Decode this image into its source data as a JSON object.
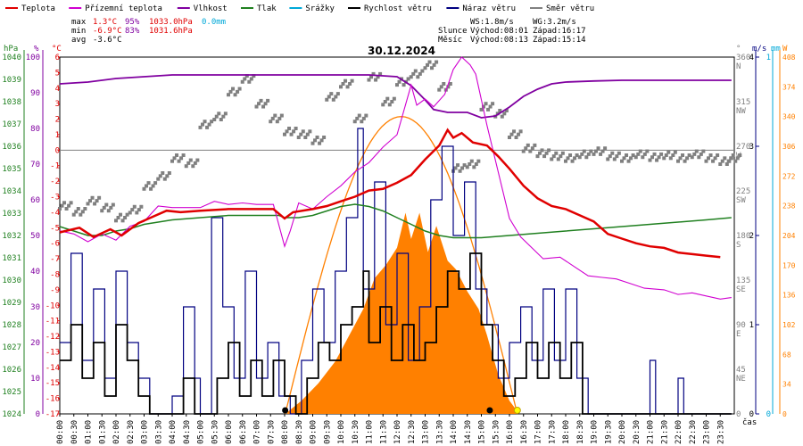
{
  "chart_data": {
    "type": "line",
    "title": "30.12.2024",
    "colors": {
      "temperature": "#e00000",
      "apparent": "#d000d0",
      "humidity": "#8000a0",
      "pressure": "#208020",
      "rain": "#00a8d8",
      "wind": "#000000",
      "gust": "#000080",
      "direction": "#808080",
      "solar": "#ff8000",
      "axis": "#000000"
    },
    "legend": [
      {
        "key": "temperature",
        "label": "Teplota"
      },
      {
        "key": "apparent",
        "label": "Přízemní teplota"
      },
      {
        "key": "humidity",
        "label": "Vlhkost"
      },
      {
        "key": "pressure",
        "label": "Tlak"
      },
      {
        "key": "rain",
        "label": "Srážky"
      },
      {
        "key": "wind",
        "label": "Rychlost větru"
      },
      {
        "key": "gust",
        "label": "Náraz větru"
      },
      {
        "key": "direction",
        "label": "Směr větru"
      }
    ],
    "stats": {
      "max_label": "max",
      "max_temp": "1.3°C",
      "max_hum": "95%",
      "max_press": "1033.0hPa",
      "rain_total": "0.0mm",
      "min_label": "min",
      "min_temp": "-6.9°C",
      "min_hum": "83%",
      "min_press": "1031.6hPa",
      "avg_label": "avg",
      "avg_temp": "-3.6°C"
    },
    "wind_info": {
      "ws": "WS:1.8m/s",
      "wg": "WG:3.2m/s"
    },
    "sun_info": {
      "label": "Slunce",
      "rise": "Východ:08:01",
      "set": "Západ:16:17"
    },
    "moon_info": {
      "label": "Měsíc",
      "rise": "Východ:08:13",
      "set": "Západ:15:14"
    },
    "axis_units": {
      "pressure": "hPa",
      "humidity": "%",
      "temperature": "°C",
      "direction": "°",
      "wind": "m/s",
      "rain": "mm",
      "solar": "W",
      "time": "čas"
    },
    "y_pressure_ticks": [
      "1040",
      "1039",
      "1038",
      "1037",
      "1036",
      "1035",
      "1034",
      "1033",
      "1032",
      "1031",
      "1030",
      "1029",
      "1028",
      "1027",
      "1026",
      "1025",
      "1024"
    ],
    "y_humidity_ticks": [
      "100",
      "90",
      "80",
      "70",
      "60",
      "50",
      "40",
      "30",
      "20",
      "10",
      "0"
    ],
    "y_temperature_ticks": [
      "6",
      "5",
      "4",
      "3",
      "2",
      "1",
      "0",
      "-1",
      "-2",
      "-3",
      "-4",
      "-5",
      "-6",
      "-7",
      "-8",
      "-9",
      "-10",
      "-11",
      "-12",
      "-13",
      "-14",
      "-15",
      "-16",
      "-17"
    ],
    "y_direction_ticks": [
      {
        "deg": "360",
        "dir": "N"
      },
      {
        "deg": "315",
        "dir": "NW"
      },
      {
        "deg": "270",
        "dir": "W"
      },
      {
        "deg": "225",
        "dir": "SW"
      },
      {
        "deg": "180",
        "dir": "S"
      },
      {
        "deg": "135",
        "dir": "SE"
      },
      {
        "deg": "90",
        "dir": "E"
      },
      {
        "deg": "45",
        "dir": "NE"
      },
      {
        "deg": "0",
        "dir": ""
      }
    ],
    "y_wind_ticks": [
      "4",
      "3",
      "2",
      "1",
      "0"
    ],
    "y_rain_ticks": [
      "1",
      "0"
    ],
    "y_solar_ticks": [
      "408",
      "374",
      "340",
      "306",
      "272",
      "238",
      "204",
      "170",
      "136",
      "102",
      "68",
      "34",
      "0"
    ],
    "x_ticks": [
      "00:00",
      "00:30",
      "01:00",
      "01:30",
      "02:00",
      "02:30",
      "03:00",
      "03:30",
      "04:00",
      "04:30",
      "05:00",
      "05:30",
      "06:00",
      "06:30",
      "07:00",
      "07:30",
      "08:00",
      "08:30",
      "09:00",
      "09:30",
      "10:00",
      "10:30",
      "11:00",
      "11:30",
      "12:00",
      "12:30",
      "13:00",
      "13:30",
      "14:00",
      "14:30",
      "15:00",
      "15:30",
      "16:00",
      "16:30",
      "17:00",
      "17:30",
      "18:00",
      "18:30",
      "19:00",
      "19:30",
      "20:00",
      "20:30",
      "21:00",
      "21:30",
      "22:00",
      "22:30",
      "23:00",
      "23:30"
    ],
    "temperature": [
      [
        0,
        -5.3
      ],
      [
        0.7,
        -5.0
      ],
      [
        1.2,
        -5.6
      ],
      [
        1.8,
        -5.1
      ],
      [
        2.2,
        -5.5
      ],
      [
        2.8,
        -4.7
      ],
      [
        3.3,
        -4.3
      ],
      [
        3.8,
        -3.9
      ],
      [
        4.3,
        -4.0
      ],
      [
        5.0,
        -3.9
      ],
      [
        6.0,
        -3.8
      ],
      [
        7.0,
        -3.8
      ],
      [
        7.6,
        -3.8
      ],
      [
        8.0,
        -4.4
      ],
      [
        8.3,
        -4.0
      ],
      [
        9.0,
        -3.8
      ],
      [
        9.5,
        -3.6
      ],
      [
        10.0,
        -3.3
      ],
      [
        10.5,
        -3.0
      ],
      [
        11.0,
        -2.6
      ],
      [
        11.5,
        -2.5
      ],
      [
        12.0,
        -2.1
      ],
      [
        12.5,
        -1.6
      ],
      [
        13.0,
        -0.6
      ],
      [
        13.5,
        0.3
      ],
      [
        13.8,
        1.3
      ],
      [
        14.0,
        0.8
      ],
      [
        14.3,
        1.1
      ],
      [
        14.7,
        0.5
      ],
      [
        15.2,
        0.3
      ],
      [
        15.6,
        -0.4
      ],
      [
        16.0,
        -1.2
      ],
      [
        16.5,
        -2.3
      ],
      [
        17.0,
        -3.1
      ],
      [
        17.5,
        -3.6
      ],
      [
        18.0,
        -3.8
      ],
      [
        18.5,
        -4.2
      ],
      [
        19.0,
        -4.6
      ],
      [
        19.5,
        -5.4
      ],
      [
        20.0,
        -5.7
      ],
      [
        20.5,
        -6.0
      ],
      [
        21.0,
        -6.2
      ],
      [
        21.5,
        -6.3
      ],
      [
        22.0,
        -6.6
      ],
      [
        22.5,
        -6.7
      ],
      [
        23.0,
        -6.8
      ],
      [
        23.5,
        -6.9
      ]
    ],
    "apparent": [
      [
        0,
        -5.2
      ],
      [
        0.5,
        -5.4
      ],
      [
        1.0,
        -5.9
      ],
      [
        1.5,
        -5.4
      ],
      [
        2.0,
        -5.8
      ],
      [
        2.5,
        -4.9
      ],
      [
        3.0,
        -4.6
      ],
      [
        3.5,
        -3.6
      ],
      [
        4.0,
        -3.7
      ],
      [
        4.5,
        -3.7
      ],
      [
        5.0,
        -3.7
      ],
      [
        5.5,
        -3.3
      ],
      [
        6.0,
        -3.5
      ],
      [
        6.5,
        -3.4
      ],
      [
        7.0,
        -3.5
      ],
      [
        7.6,
        -3.5
      ],
      [
        8.0,
        -6.2
      ],
      [
        8.2,
        -5.2
      ],
      [
        8.5,
        -3.4
      ],
      [
        9.0,
        -3.8
      ],
      [
        9.5,
        -3.0
      ],
      [
        10.0,
        -2.3
      ],
      [
        10.5,
        -1.4
      ],
      [
        11.0,
        -0.8
      ],
      [
        11.5,
        0.2
      ],
      [
        12.0,
        1.0
      ],
      [
        12.5,
        4.2
      ],
      [
        12.7,
        2.9
      ],
      [
        13.0,
        3.3
      ],
      [
        13.3,
        2.8
      ],
      [
        13.7,
        3.6
      ],
      [
        14.0,
        5.2
      ],
      [
        14.3,
        6.0
      ],
      [
        14.6,
        5.5
      ],
      [
        14.8,
        4.9
      ],
      [
        15.2,
        1.6
      ],
      [
        15.6,
        -1.4
      ],
      [
        16.0,
        -4.4
      ],
      [
        16.4,
        -5.6
      ],
      [
        16.8,
        -6.3
      ],
      [
        17.2,
        -7.0
      ],
      [
        17.8,
        -6.9
      ],
      [
        18.3,
        -7.5
      ],
      [
        18.8,
        -8.1
      ],
      [
        19.3,
        -8.2
      ],
      [
        19.8,
        -8.3
      ],
      [
        20.3,
        -8.6
      ],
      [
        20.8,
        -8.9
      ],
      [
        21.5,
        -9.0
      ],
      [
        22.0,
        -9.3
      ],
      [
        22.5,
        -9.2
      ],
      [
        23.0,
        -9.4
      ],
      [
        23.5,
        -9.6
      ],
      [
        23.9,
        -9.5
      ]
    ],
    "humidity": [
      [
        0,
        92.5
      ],
      [
        1.0,
        93.0
      ],
      [
        2.0,
        94.0
      ],
      [
        3.0,
        94.5
      ],
      [
        4.0,
        95.0
      ],
      [
        6.0,
        95.0
      ],
      [
        8.0,
        95.0
      ],
      [
        10.0,
        95.0
      ],
      [
        11.0,
        95.0
      ],
      [
        12.0,
        94.5
      ],
      [
        12.5,
        92.0
      ],
      [
        13.0,
        88.0
      ],
      [
        13.3,
        85.3
      ],
      [
        13.8,
        84.5
      ],
      [
        14.5,
        84.5
      ],
      [
        15.0,
        83.0
      ],
      [
        15.5,
        83.5
      ],
      [
        16.0,
        86.0
      ],
      [
        16.5,
        89.0
      ],
      [
        17.0,
        91.0
      ],
      [
        17.5,
        92.5
      ],
      [
        18.0,
        93.0
      ],
      [
        19.0,
        93.3
      ],
      [
        20.0,
        93.5
      ],
      [
        22.0,
        93.5
      ],
      [
        23.9,
        93.5
      ]
    ],
    "pressure": [
      [
        0,
        1032.4
      ],
      [
        0.5,
        1032.2
      ],
      [
        1.0,
        1032.0
      ],
      [
        1.5,
        1032.0
      ],
      [
        2.0,
        1032.2
      ],
      [
        2.5,
        1032.3
      ],
      [
        3.0,
        1032.5
      ],
      [
        3.5,
        1032.6
      ],
      [
        4.0,
        1032.7
      ],
      [
        5.0,
        1032.8
      ],
      [
        6.0,
        1032.9
      ],
      [
        7.0,
        1032.9
      ],
      [
        7.8,
        1032.9
      ],
      [
        8.0,
        1032.8
      ],
      [
        8.5,
        1032.8
      ],
      [
        9.0,
        1032.9
      ],
      [
        9.5,
        1033.1
      ],
      [
        10.0,
        1033.3
      ],
      [
        10.5,
        1033.4
      ],
      [
        11.0,
        1033.3
      ],
      [
        11.5,
        1033.1
      ],
      [
        12.0,
        1032.8
      ],
      [
        12.5,
        1032.5
      ],
      [
        13.0,
        1032.2
      ],
      [
        13.5,
        1032.0
      ],
      [
        14.0,
        1031.9
      ],
      [
        14.5,
        1031.9
      ],
      [
        15.0,
        1031.9
      ],
      [
        16.0,
        1032.0
      ],
      [
        17.0,
        1032.1
      ],
      [
        18.0,
        1032.2
      ],
      [
        19.0,
        1032.3
      ],
      [
        20.0,
        1032.4
      ],
      [
        21.0,
        1032.5
      ],
      [
        22.0,
        1032.6
      ],
      [
        23.0,
        1032.7
      ],
      [
        23.9,
        1032.8
      ]
    ],
    "wind_speed": [
      [
        0,
        0.6
      ],
      [
        0.4,
        1.0
      ],
      [
        0.8,
        0.4
      ],
      [
        1.2,
        0.8
      ],
      [
        1.6,
        0.2
      ],
      [
        2.0,
        1.0
      ],
      [
        2.4,
        0.6
      ],
      [
        2.8,
        0.2
      ],
      [
        3.2,
        0
      ],
      [
        3.6,
        0
      ],
      [
        4.0,
        0
      ],
      [
        4.4,
        0.4
      ],
      [
        4.8,
        0
      ],
      [
        5.2,
        0
      ],
      [
        5.6,
        0.4
      ],
      [
        6.0,
        0.8
      ],
      [
        6.4,
        0.2
      ],
      [
        6.8,
        0.6
      ],
      [
        7.2,
        0.2
      ],
      [
        7.6,
        0.6
      ],
      [
        8.0,
        0.2
      ],
      [
        8.4,
        0
      ],
      [
        8.8,
        0.4
      ],
      [
        9.2,
        0.8
      ],
      [
        9.6,
        0.6
      ],
      [
        10.0,
        1.0
      ],
      [
        10.4,
        1.2
      ],
      [
        10.8,
        1.6
      ],
      [
        11.0,
        0.8
      ],
      [
        11.4,
        1.2
      ],
      [
        11.8,
        0.6
      ],
      [
        12.2,
        1.0
      ],
      [
        12.6,
        0.6
      ],
      [
        13.0,
        0.8
      ],
      [
        13.4,
        1.2
      ],
      [
        13.8,
        1.6
      ],
      [
        14.2,
        1.4
      ],
      [
        14.6,
        1.8
      ],
      [
        15.0,
        1.0
      ],
      [
        15.4,
        0.6
      ],
      [
        15.8,
        0.2
      ],
      [
        16.2,
        0.4
      ],
      [
        16.6,
        0.8
      ],
      [
        17.0,
        0.4
      ],
      [
        17.4,
        0.8
      ],
      [
        17.8,
        0.4
      ],
      [
        18.2,
        0.8
      ],
      [
        18.6,
        0
      ],
      [
        19.0,
        0
      ],
      [
        19.6,
        0
      ],
      [
        20.0,
        0
      ],
      [
        20.6,
        0
      ],
      [
        21.0,
        0
      ],
      [
        21.6,
        0
      ],
      [
        22.0,
        0
      ],
      [
        23.0,
        0
      ],
      [
        23.9,
        0
      ]
    ],
    "wind_gust": [
      [
        0,
        0.8
      ],
      [
        0.4,
        1.8
      ],
      [
        0.8,
        0.6
      ],
      [
        1.2,
        1.4
      ],
      [
        1.6,
        0.4
      ],
      [
        2.0,
        1.6
      ],
      [
        2.4,
        0.8
      ],
      [
        2.8,
        0.4
      ],
      [
        3.2,
        0
      ],
      [
        3.6,
        0
      ],
      [
        4.0,
        0.2
      ],
      [
        4.4,
        1.2
      ],
      [
        4.8,
        0.4
      ],
      [
        5.0,
        0
      ],
      [
        5.4,
        2.2
      ],
      [
        5.8,
        1.2
      ],
      [
        6.2,
        0.4
      ],
      [
        6.6,
        1.6
      ],
      [
        7.0,
        0.4
      ],
      [
        7.4,
        0.8
      ],
      [
        7.8,
        0.2
      ],
      [
        8.2,
        0
      ],
      [
        8.6,
        0.6
      ],
      [
        9.0,
        1.4
      ],
      [
        9.4,
        0.8
      ],
      [
        9.8,
        1.6
      ],
      [
        10.2,
        2.2
      ],
      [
        10.6,
        3.2
      ],
      [
        10.8,
        1.4
      ],
      [
        11.2,
        2.6
      ],
      [
        11.6,
        1.0
      ],
      [
        12.0,
        1.8
      ],
      [
        12.4,
        0.6
      ],
      [
        12.8,
        1.2
      ],
      [
        13.2,
        2.4
      ],
      [
        13.6,
        3.0
      ],
      [
        14.0,
        2.0
      ],
      [
        14.4,
        2.6
      ],
      [
        14.8,
        1.4
      ],
      [
        15.2,
        1.0
      ],
      [
        15.6,
        0.4
      ],
      [
        16.0,
        0.8
      ],
      [
        16.4,
        1.2
      ],
      [
        16.8,
        0.6
      ],
      [
        17.2,
        1.4
      ],
      [
        17.6,
        0.6
      ],
      [
        18.0,
        1.4
      ],
      [
        18.4,
        0.4
      ],
      [
        18.8,
        0
      ],
      [
        19.2,
        0
      ],
      [
        20.2,
        0
      ],
      [
        21.0,
        0.6
      ],
      [
        21.2,
        0
      ],
      [
        21.8,
        0
      ],
      [
        22.0,
        0.4
      ],
      [
        22.2,
        0
      ],
      [
        23.0,
        0
      ],
      [
        23.9,
        0
      ]
    ],
    "direction_samples": [
      [
        0,
        210
      ],
      [
        0.5,
        204
      ],
      [
        1.0,
        215
      ],
      [
        1.5,
        208
      ],
      [
        2.0,
        198
      ],
      [
        2.5,
        206
      ],
      [
        3.0,
        230
      ],
      [
        3.5,
        240
      ],
      [
        4.0,
        258
      ],
      [
        4.5,
        253
      ],
      [
        5.0,
        292
      ],
      [
        5.5,
        300
      ],
      [
        6.0,
        325
      ],
      [
        6.5,
        338
      ],
      [
        7.0,
        313
      ],
      [
        7.5,
        298
      ],
      [
        8.0,
        285
      ],
      [
        8.5,
        282
      ],
      [
        9.0,
        276
      ],
      [
        9.5,
        320
      ],
      [
        10.0,
        333
      ],
      [
        10.5,
        298
      ],
      [
        11.0,
        340
      ],
      [
        11.5,
        315
      ],
      [
        12.0,
        335
      ],
      [
        12.5,
        343
      ],
      [
        13.0,
        352
      ],
      [
        13.5,
        330
      ],
      [
        14.0,
        248
      ],
      [
        14.5,
        252
      ],
      [
        15.0,
        310
      ],
      [
        15.5,
        303
      ],
      [
        16.0,
        282
      ],
      [
        16.5,
        268
      ],
      [
        17.0,
        263
      ],
      [
        17.5,
        260
      ],
      [
        18.0,
        258
      ],
      [
        18.5,
        262
      ],
      [
        19.0,
        265
      ],
      [
        19.5,
        260
      ],
      [
        20.0,
        258
      ],
      [
        20.5,
        262
      ],
      [
        21.0,
        259
      ],
      [
        21.5,
        261
      ],
      [
        22.0,
        258
      ],
      [
        22.5,
        262
      ],
      [
        23.0,
        258
      ],
      [
        23.5,
        255
      ],
      [
        23.8,
        258
      ]
    ],
    "solar_peak": [
      [
        8.1,
        2
      ],
      [
        8.6,
        15
      ],
      [
        9.2,
        35
      ],
      [
        9.8,
        60
      ],
      [
        10.3,
        90
      ],
      [
        10.8,
        120
      ],
      [
        11.2,
        155
      ],
      [
        11.6,
        170
      ],
      [
        12.0,
        190
      ],
      [
        12.3,
        230
      ],
      [
        12.5,
        200
      ],
      [
        12.8,
        230
      ],
      [
        13.1,
        185
      ],
      [
        13.4,
        215
      ],
      [
        13.8,
        175
      ],
      [
        14.1,
        165
      ],
      [
        14.5,
        140
      ],
      [
        14.9,
        120
      ],
      [
        15.2,
        90
      ],
      [
        15.6,
        45
      ],
      [
        16.0,
        15
      ],
      [
        16.3,
        2
      ]
    ],
    "solar_clear_peak": 340,
    "sunrise_hour": 8.02,
    "sunset_hour": 16.28
  }
}
